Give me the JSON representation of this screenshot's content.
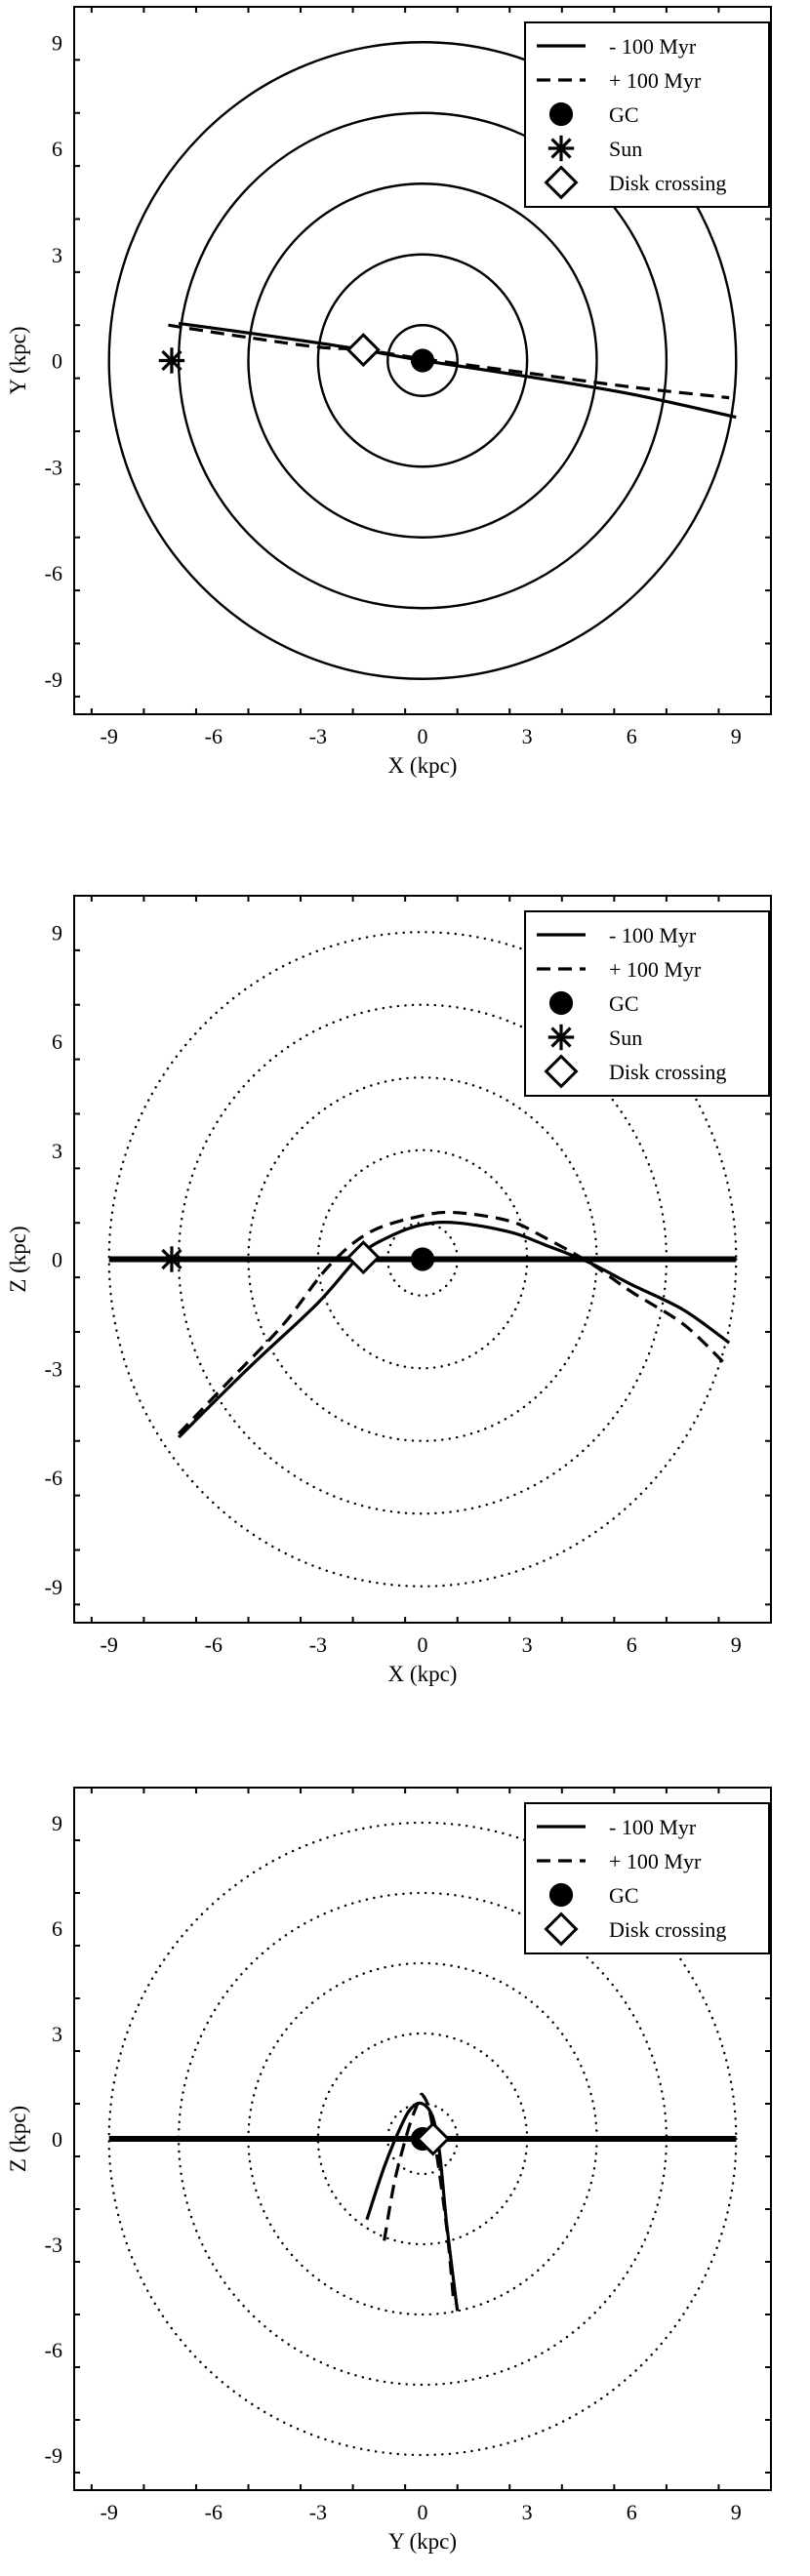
{
  "chart_data": [
    {
      "type": "line",
      "xlabel": "X (kpc)",
      "ylabel": "Y (kpc)",
      "xlim": [
        -10,
        10
      ],
      "ylim": [
        -10,
        10
      ],
      "xticks": [
        -9,
        -6,
        -3,
        0,
        3,
        6,
        9
      ],
      "yticks": [
        -9,
        -6,
        -3,
        0,
        3,
        6,
        9
      ],
      "tick_labels": [
        "-9",
        "-6",
        "-3",
        "0",
        "3",
        "6",
        "9"
      ],
      "legend": [
        "- 100 Myr",
        "+ 100 Myr",
        "GC",
        "Sun",
        "Disk crossing"
      ],
      "legend_position": "top-right",
      "circles": {
        "style": "solid",
        "radii": [
          1,
          3,
          5,
          7,
          9
        ]
      },
      "series": [
        {
          "name": "- 100 Myr",
          "style": "solid",
          "x": [
            -7.0,
            -5.0,
            -3.0,
            -1.7,
            0.0,
            3.0,
            6.0,
            9.0
          ],
          "y": [
            1.05,
            0.78,
            0.5,
            0.3,
            0.0,
            -0.45,
            -0.95,
            -1.6
          ]
        },
        {
          "name": "+ 100 Myr",
          "style": "dashed",
          "x": [
            -7.3,
            -5.0,
            -3.0,
            -1.7,
            0.0,
            3.0,
            6.0,
            8.8
          ],
          "y": [
            1.0,
            0.65,
            0.38,
            0.3,
            0.05,
            -0.35,
            -0.75,
            -1.05
          ]
        }
      ],
      "markers": [
        {
          "name": "GC",
          "symbol": "circle",
          "x": 0,
          "y": 0
        },
        {
          "name": "Sun",
          "symbol": "asterisk",
          "x": -7.2,
          "y": 0
        },
        {
          "name": "Disk crossing",
          "symbol": "diamond",
          "x": -1.7,
          "y": 0.3
        }
      ]
    },
    {
      "type": "line",
      "xlabel": "X (kpc)",
      "ylabel": "Z (kpc)",
      "xlim": [
        -10,
        10
      ],
      "ylim": [
        -10,
        10
      ],
      "xticks": [
        -9,
        -6,
        -3,
        0,
        3,
        6,
        9
      ],
      "yticks": [
        -9,
        -6,
        -3,
        0,
        3,
        6,
        9
      ],
      "tick_labels": [
        "-9",
        "-6",
        "-3",
        "0",
        "3",
        "6",
        "9"
      ],
      "legend": [
        "- 100 Myr",
        "+ 100 Myr",
        "GC",
        "Sun",
        "Disk crossing"
      ],
      "legend_position": "top-right",
      "circles": {
        "style": "dotted",
        "radii": [
          1,
          3,
          5,
          7,
          9
        ]
      },
      "disk_line": {
        "y": 0,
        "x": [
          -9,
          9
        ]
      },
      "series": [
        {
          "name": "- 100 Myr",
          "style": "solid",
          "x": [
            -7.0,
            -5.0,
            -3.0,
            -1.8,
            -1.0,
            0.0,
            1.0,
            2.5,
            3.5,
            4.8,
            6.0,
            7.5,
            8.8
          ],
          "y": [
            -4.9,
            -3.0,
            -1.2,
            0.1,
            0.6,
            0.95,
            1.0,
            0.75,
            0.4,
            -0.1,
            -0.7,
            -1.4,
            -2.3
          ]
        },
        {
          "name": "+ 100 Myr",
          "style": "dashed",
          "x": [
            -7.0,
            -5.5,
            -4.0,
            -2.7,
            -1.5,
            0.0,
            1.0,
            2.5,
            3.5,
            4.8,
            6.0,
            7.5,
            8.7
          ],
          "y": [
            -4.8,
            -3.3,
            -1.8,
            -0.2,
            0.75,
            1.2,
            1.28,
            1.05,
            0.6,
            -0.1,
            -0.9,
            -1.8,
            -2.9
          ]
        }
      ],
      "markers": [
        {
          "name": "GC",
          "symbol": "circle",
          "x": 0,
          "y": 0
        },
        {
          "name": "Sun",
          "symbol": "asterisk",
          "x": -7.2,
          "y": 0
        },
        {
          "name": "Disk crossing",
          "symbol": "diamond",
          "x": -1.7,
          "y": 0.05
        }
      ]
    },
    {
      "type": "line",
      "xlabel": "Y (kpc)",
      "ylabel": "Z (kpc)",
      "xlim": [
        -10,
        10
      ],
      "ylim": [
        -10,
        10
      ],
      "xticks": [
        -9,
        -6,
        -3,
        0,
        3,
        6,
        9
      ],
      "yticks": [
        -9,
        -6,
        -3,
        0,
        3,
        6,
        9
      ],
      "tick_labels": [
        "-9",
        "-6",
        "-3",
        "0",
        "3",
        "6",
        "9"
      ],
      "legend": [
        "- 100 Myr",
        "+ 100 Myr",
        "GC",
        "Disk crossing"
      ],
      "legend_position": "top-right",
      "circles": {
        "style": "dotted",
        "radii": [
          1,
          3,
          5,
          7,
          9
        ]
      },
      "disk_line": {
        "y": 0,
        "x": [
          -9,
          9
        ]
      },
      "series": [
        {
          "name": "- 100 Myr",
          "style": "solid",
          "x": [
            -1.6,
            -1.1,
            -0.6,
            -0.3,
            0.0,
            0.3,
            0.5,
            0.7,
            1.0
          ],
          "y": [
            -2.3,
            -0.8,
            0.4,
            0.9,
            1.0,
            0.6,
            -0.5,
            -2.5,
            -4.9
          ]
        },
        {
          "name": "+ 100 Myr",
          "style": "dashed",
          "x": [
            -1.1,
            -0.8,
            -0.4,
            -0.1,
            0.0,
            0.2,
            0.4,
            0.7,
            0.9
          ],
          "y": [
            -2.9,
            -1.2,
            0.3,
            1.1,
            1.25,
            0.8,
            -0.4,
            -2.6,
            -4.7
          ]
        }
      ],
      "markers": [
        {
          "name": "GC",
          "symbol": "circle",
          "x": 0,
          "y": 0
        },
        {
          "name": "Disk crossing",
          "symbol": "diamond",
          "x": 0.3,
          "y": 0
        }
      ]
    }
  ]
}
